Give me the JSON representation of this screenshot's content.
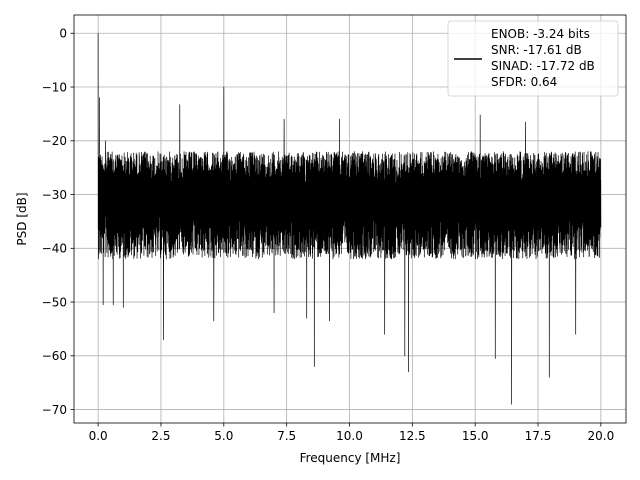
{
  "chart_data": {
    "type": "line",
    "title": "",
    "xlabel": "Frequency [MHz]",
    "ylabel": "PSD [dB]",
    "xlim": [
      -0.96,
      21.0
    ],
    "ylim": [
      -72.5,
      3.4
    ],
    "xticks": [
      0.0,
      2.5,
      5.0,
      7.5,
      10.0,
      12.5,
      15.0,
      17.5,
      20.0
    ],
    "xtick_labels": [
      "0.0",
      "2.5",
      "5.0",
      "7.5",
      "10.0",
      "12.5",
      "15.0",
      "17.5",
      "20.0"
    ],
    "yticks": [
      0,
      -10,
      -20,
      -30,
      -40,
      -50,
      -60,
      -70
    ],
    "ytick_labels": [
      "0",
      "−10",
      "−20",
      "−30",
      "−40",
      "−50",
      "−60",
      "−70"
    ],
    "grid": true,
    "legend": {
      "placement": "top-right",
      "lines": [
        "ENOB: -3.24 bits",
        "SNR: -17.61 dB",
        "SINAD: -17.72 dB",
        "SFDR: 0.64"
      ]
    },
    "series": [
      {
        "color": "#000000",
        "x_range": [
          0.0,
          20.0
        ],
        "num_points": 4096,
        "upper_envelope_dB": -20,
        "typical_low_dB": -40,
        "peaks": [
          {
            "x": 0.0,
            "y": 0.0
          },
          {
            "x": 0.05,
            "y": -12.0
          },
          {
            "x": 0.3,
            "y": -20.0
          },
          {
            "x": 3.25,
            "y": -13.3
          },
          {
            "x": 5.0,
            "y": -10.0
          },
          {
            "x": 7.4,
            "y": -16.0
          },
          {
            "x": 9.6,
            "y": -16.0
          },
          {
            "x": 15.2,
            "y": -15.2
          },
          {
            "x": 17.0,
            "y": -16.5
          }
        ],
        "dips": [
          {
            "x": 0.2,
            "y": -50.5
          },
          {
            "x": 0.6,
            "y": -50.5
          },
          {
            "x": 1.0,
            "y": -51.0
          },
          {
            "x": 2.6,
            "y": -57.0
          },
          {
            "x": 4.6,
            "y": -53.5
          },
          {
            "x": 7.0,
            "y": -52.0
          },
          {
            "x": 8.3,
            "y": -53.0
          },
          {
            "x": 8.6,
            "y": -62.0
          },
          {
            "x": 9.2,
            "y": -53.5
          },
          {
            "x": 11.4,
            "y": -56.0
          },
          {
            "x": 12.2,
            "y": -60.0
          },
          {
            "x": 12.35,
            "y": -63.0
          },
          {
            "x": 15.8,
            "y": -60.5
          },
          {
            "x": 16.45,
            "y": -69.0
          },
          {
            "x": 17.95,
            "y": -64.0
          },
          {
            "x": 19.0,
            "y": -56.0
          }
        ]
      }
    ]
  }
}
